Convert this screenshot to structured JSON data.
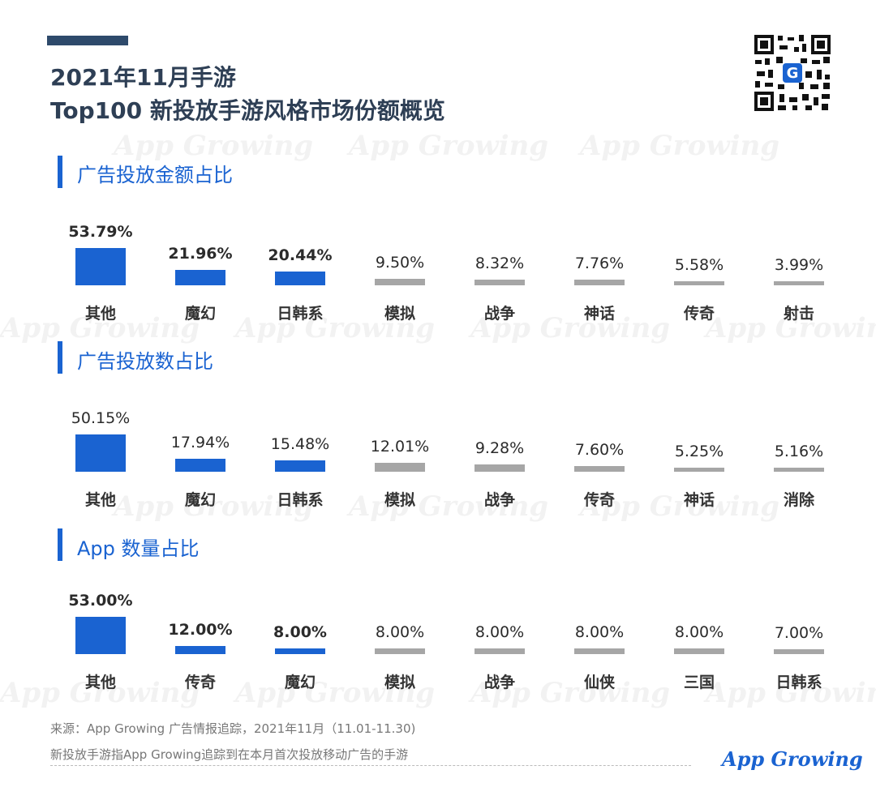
{
  "header": {
    "title_line1": "2021年11月手游",
    "title_line2": "Top100 新投放手游风格市场份额概览"
  },
  "watermark_text": "App Growing",
  "colors": {
    "highlight": "#1a63d1",
    "normal": "#a6a6a6",
    "title": "#2e3f55"
  },
  "chart_data": [
    {
      "type": "bar",
      "title": "广告投放金额占比",
      "categories": [
        "其他",
        "魔幻",
        "日韩系",
        "模拟",
        "战争",
        "神话",
        "传奇",
        "射击"
      ],
      "values": [
        53.79,
        21.96,
        20.44,
        9.5,
        8.32,
        7.76,
        5.58,
        3.99
      ],
      "labels": [
        "53.79%",
        "21.96%",
        "20.44%",
        "9.50%",
        "8.32%",
        "7.76%",
        "5.58%",
        "3.99%"
      ],
      "highlighted": 3
    },
    {
      "type": "bar",
      "title": "广告投放数占比",
      "categories": [
        "其他",
        "魔幻",
        "日韩系",
        "模拟",
        "战争",
        "传奇",
        "神话",
        "消除"
      ],
      "values": [
        50.15,
        17.94,
        15.48,
        12.01,
        9.28,
        7.6,
        5.25,
        5.16
      ],
      "labels": [
        "50.15%",
        "17.94%",
        "15.48%",
        "12.01%",
        "9.28%",
        "7.60%",
        "5.25%",
        "5.16%"
      ],
      "highlighted": 3
    },
    {
      "type": "bar",
      "title": "App 数量占比",
      "categories": [
        "其他",
        "传奇",
        "魔幻",
        "模拟",
        "战争",
        "仙侠",
        "三国",
        "日韩系"
      ],
      "values": [
        53.0,
        12.0,
        8.0,
        8.0,
        8.0,
        8.0,
        8.0,
        7.0
      ],
      "labels": [
        "53.00%",
        "12.00%",
        "8.00%",
        "8.00%",
        "8.00%",
        "8.00%",
        "8.00%",
        "7.00%"
      ],
      "highlighted": 3
    }
  ],
  "footer": {
    "source": "来源：App Growing 广告情报追踪，2021年11月（11.01-11.30)",
    "note": "新投放手游指App Growing追踪到在本月首次投放移动广告的手游",
    "logo": "App Growing"
  }
}
